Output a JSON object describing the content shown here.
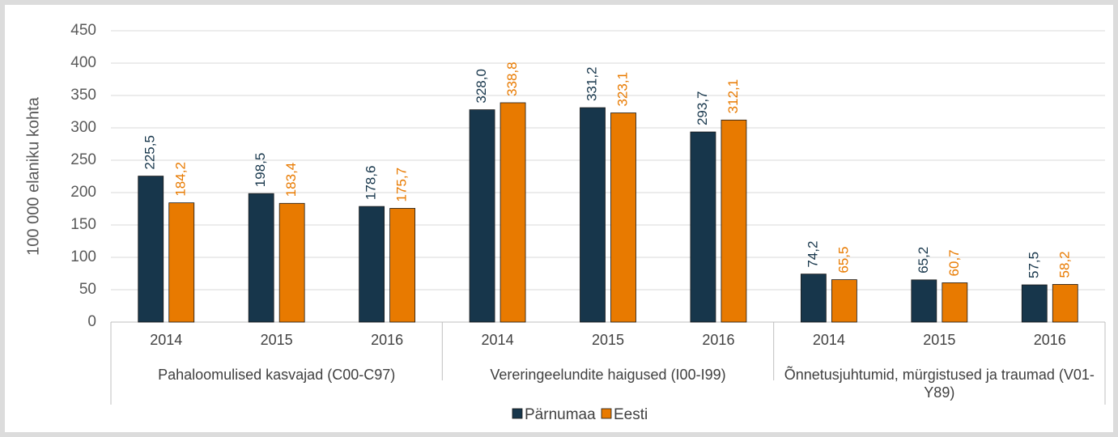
{
  "chart_data": {
    "type": "bar",
    "y_label": "100 000 elaniku kohta",
    "groups": [
      {
        "label": "Pahaloomulised kasvajad (C00-C97)",
        "categories": [
          "2014",
          "2015",
          "2016"
        ]
      },
      {
        "label": "Vereringeelundite haigused (I00-I99)",
        "categories": [
          "2014",
          "2015",
          "2016"
        ]
      },
      {
        "label": "Õnnetusjuhtumid, mürgistused ja traumad (V01-Y89)",
        "categories": [
          "2014",
          "2015",
          "2016"
        ]
      }
    ],
    "series": [
      {
        "name": "Pärnumaa",
        "color": "#17364b",
        "values": [
          225.5,
          198.5,
          178.6,
          328.0,
          331.2,
          293.7,
          74.2,
          65.2,
          57.5
        ],
        "value_labels": [
          "225,5",
          "198,5",
          "178,6",
          "328,0",
          "331,2",
          "293,7",
          "74,2",
          "65,2",
          "57,5"
        ]
      },
      {
        "name": "Eesti",
        "color": "#e87a00",
        "values": [
          184.2,
          183.4,
          175.7,
          338.8,
          323.1,
          312.1,
          65.5,
          60.7,
          58.2
        ],
        "value_labels": [
          "184,2",
          "183,4",
          "175,7",
          "338,8",
          "323,1",
          "312,1",
          "65,5",
          "60,7",
          "58,2"
        ]
      }
    ],
    "ylim": [
      0,
      450
    ],
    "yticks": [
      0,
      50,
      100,
      150,
      200,
      250,
      300,
      350,
      400,
      450
    ],
    "grid": true
  }
}
